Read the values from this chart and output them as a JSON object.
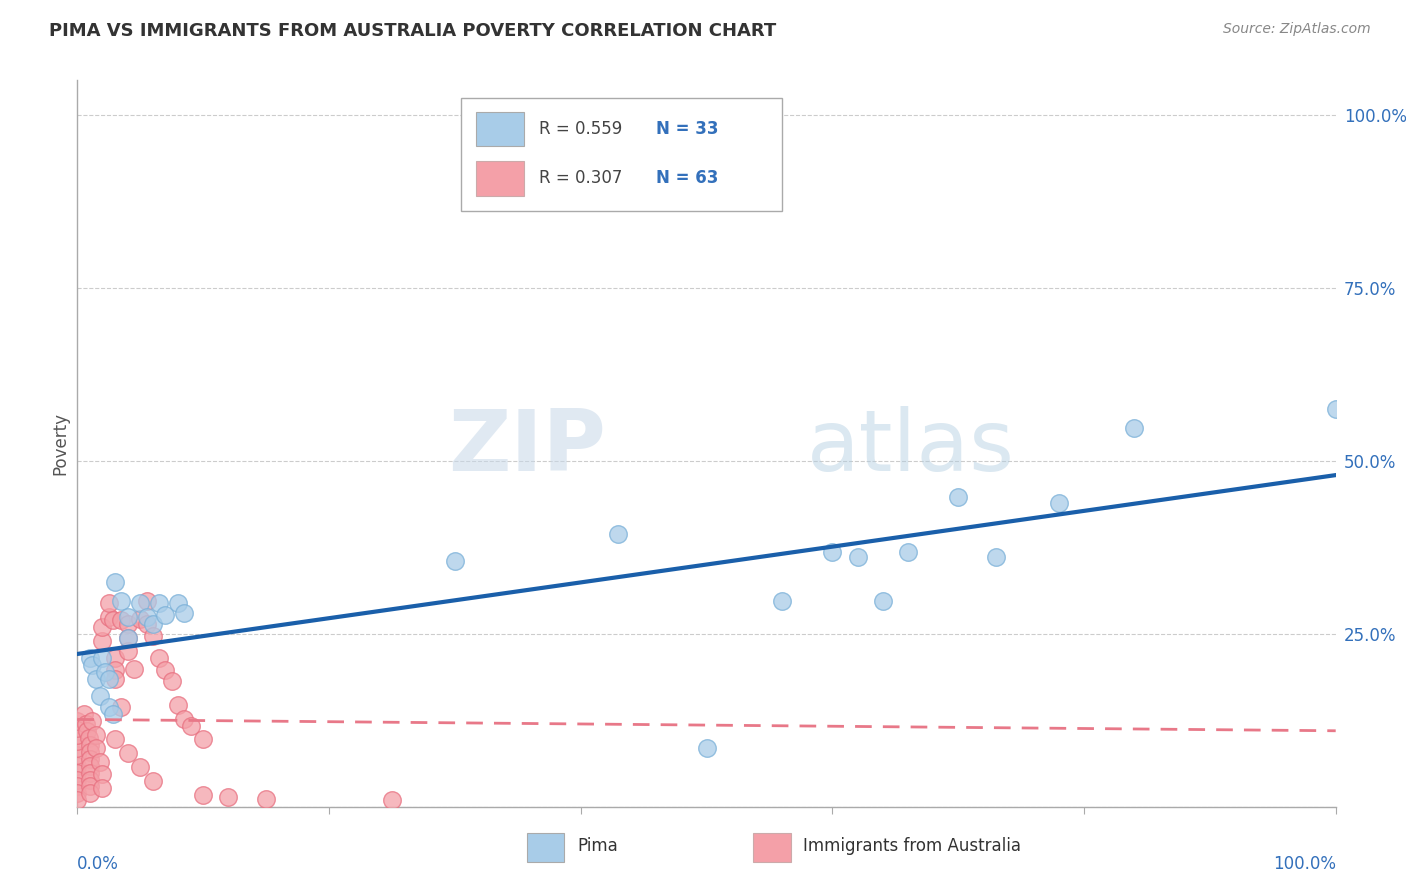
{
  "title": "PIMA VS IMMIGRANTS FROM AUSTRALIA POVERTY CORRELATION CHART",
  "source": "Source: ZipAtlas.com",
  "ylabel": "Poverty",
  "watermark_zip": "ZIP",
  "watermark_atlas": "atlas",
  "legend_r_pima": "R = 0.559",
  "legend_n_pima": "N = 33",
  "legend_r_aus": "R = 0.307",
  "legend_n_aus": "N = 63",
  "pima_color": "#a8cce8",
  "pima_edge_color": "#7ab0d8",
  "aus_color": "#f4a0a8",
  "aus_edge_color": "#e87080",
  "pima_line_color": "#1a5faa",
  "aus_line_color": "#e87888",
  "pima_points": [
    [
      0.01,
      0.215
    ],
    [
      0.012,
      0.205
    ],
    [
      0.015,
      0.185
    ],
    [
      0.018,
      0.16
    ],
    [
      0.02,
      0.215
    ],
    [
      0.022,
      0.196
    ],
    [
      0.025,
      0.185
    ],
    [
      0.025,
      0.145
    ],
    [
      0.028,
      0.135
    ],
    [
      0.03,
      0.325
    ],
    [
      0.035,
      0.298
    ],
    [
      0.04,
      0.275
    ],
    [
      0.04,
      0.245
    ],
    [
      0.05,
      0.295
    ],
    [
      0.055,
      0.275
    ],
    [
      0.06,
      0.265
    ],
    [
      0.065,
      0.295
    ],
    [
      0.07,
      0.278
    ],
    [
      0.08,
      0.295
    ],
    [
      0.085,
      0.28
    ],
    [
      0.3,
      0.355
    ],
    [
      0.43,
      0.395
    ],
    [
      0.5,
      0.085
    ],
    [
      0.56,
      0.298
    ],
    [
      0.6,
      0.368
    ],
    [
      0.62,
      0.362
    ],
    [
      0.64,
      0.298
    ],
    [
      0.66,
      0.368
    ],
    [
      0.7,
      0.448
    ],
    [
      0.73,
      0.362
    ],
    [
      0.78,
      0.44
    ],
    [
      0.84,
      0.548
    ],
    [
      1.0,
      0.575
    ]
  ],
  "aus_points": [
    [
      0.0,
      0.06
    ],
    [
      0.0,
      0.075
    ],
    [
      0.0,
      0.085
    ],
    [
      0.0,
      0.095
    ],
    [
      0.0,
      0.105
    ],
    [
      0.0,
      0.115
    ],
    [
      0.0,
      0.125
    ],
    [
      0.0,
      0.05
    ],
    [
      0.0,
      0.04
    ],
    [
      0.0,
      0.03
    ],
    [
      0.0,
      0.02
    ],
    [
      0.0,
      0.01
    ],
    [
      0.005,
      0.135
    ],
    [
      0.007,
      0.12
    ],
    [
      0.008,
      0.11
    ],
    [
      0.009,
      0.1
    ],
    [
      0.01,
      0.09
    ],
    [
      0.01,
      0.08
    ],
    [
      0.01,
      0.07
    ],
    [
      0.01,
      0.06
    ],
    [
      0.01,
      0.05
    ],
    [
      0.01,
      0.04
    ],
    [
      0.01,
      0.03
    ],
    [
      0.01,
      0.02
    ],
    [
      0.012,
      0.125
    ],
    [
      0.015,
      0.105
    ],
    [
      0.015,
      0.085
    ],
    [
      0.018,
      0.065
    ],
    [
      0.02,
      0.24
    ],
    [
      0.02,
      0.26
    ],
    [
      0.025,
      0.275
    ],
    [
      0.025,
      0.295
    ],
    [
      0.028,
      0.27
    ],
    [
      0.03,
      0.215
    ],
    [
      0.03,
      0.198
    ],
    [
      0.03,
      0.185
    ],
    [
      0.035,
      0.145
    ],
    [
      0.035,
      0.27
    ],
    [
      0.04,
      0.265
    ],
    [
      0.04,
      0.245
    ],
    [
      0.04,
      0.225
    ],
    [
      0.045,
      0.2
    ],
    [
      0.05,
      0.272
    ],
    [
      0.055,
      0.298
    ],
    [
      0.055,
      0.265
    ],
    [
      0.06,
      0.248
    ],
    [
      0.065,
      0.215
    ],
    [
      0.07,
      0.198
    ],
    [
      0.075,
      0.182
    ],
    [
      0.08,
      0.148
    ],
    [
      0.085,
      0.128
    ],
    [
      0.09,
      0.118
    ],
    [
      0.1,
      0.098
    ],
    [
      0.02,
      0.048
    ],
    [
      0.02,
      0.028
    ],
    [
      0.03,
      0.098
    ],
    [
      0.04,
      0.078
    ],
    [
      0.05,
      0.058
    ],
    [
      0.06,
      0.038
    ],
    [
      0.1,
      0.018
    ],
    [
      0.12,
      0.015
    ],
    [
      0.15,
      0.012
    ],
    [
      0.25,
      0.01
    ]
  ],
  "xlim": [
    0.0,
    1.0
  ],
  "ylim": [
    0.0,
    1.05
  ],
  "ytick_positions": [
    0.0,
    0.25,
    0.5,
    0.75,
    1.0
  ],
  "ytick_labels": [
    "",
    "25.0%",
    "50.0%",
    "75.0%",
    "100.0%"
  ],
  "background_color": "#ffffff",
  "grid_color": "#cccccc",
  "ytick_color": "#3370bb",
  "title_color": "#333333",
  "source_color": "#888888",
  "ylabel_color": "#555555"
}
